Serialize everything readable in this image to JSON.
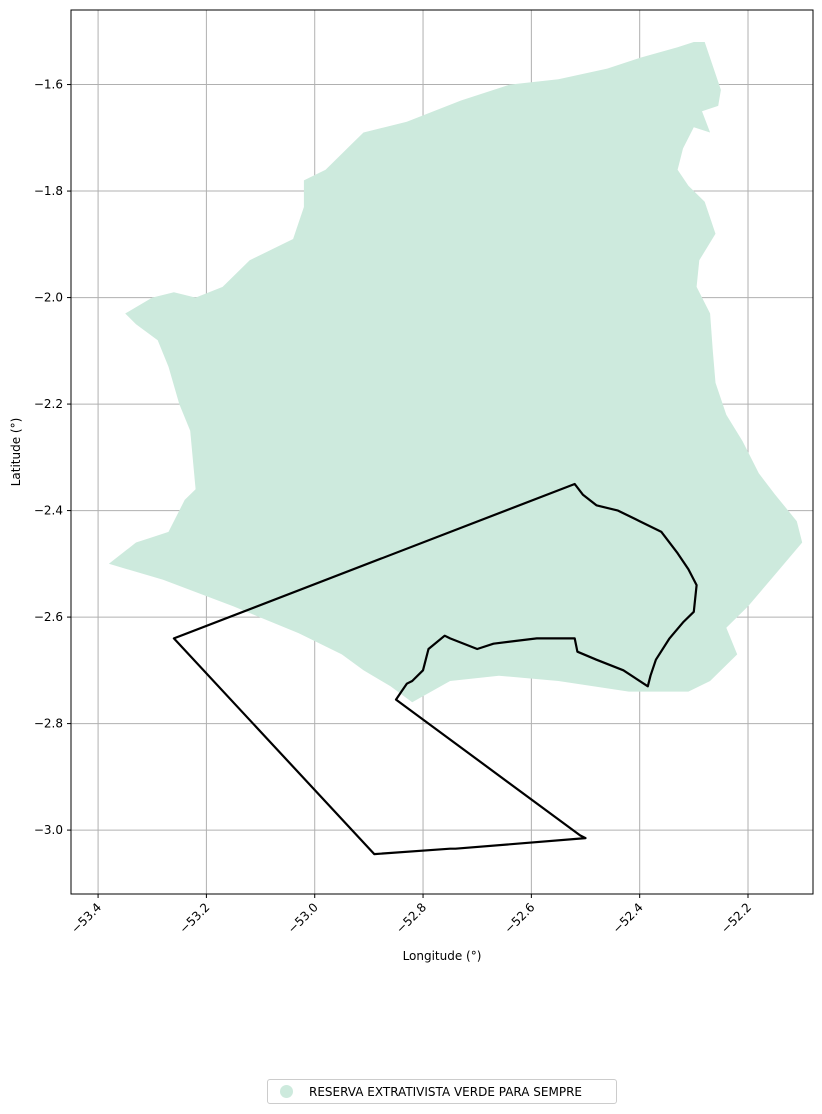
{
  "chart_data": {
    "type": "map",
    "xlabel": "Longitude (°)",
    "ylabel": "Latitude (°)",
    "xlim": [
      -53.45,
      -52.08
    ],
    "ylim": [
      -3.12,
      -1.46
    ],
    "xticks": [
      -53.4,
      -53.2,
      -53.0,
      -52.8,
      -52.6,
      -52.4,
      -52.2
    ],
    "xtick_labels": [
      "−53.4",
      "−53.2",
      "−53.0",
      "−52.8",
      "−52.6",
      "−52.4",
      "−52.2"
    ],
    "yticks": [
      -1.6,
      -1.8,
      -2.0,
      -2.2,
      -2.4,
      -2.6,
      -2.8,
      -3.0
    ],
    "ytick_labels": [
      "−1.6",
      "−1.8",
      "−2.0",
      "−2.2",
      "−2.4",
      "−2.6",
      "−2.8",
      "−3.0"
    ],
    "grid": true,
    "legend_position": "bottom-center",
    "layers": [
      {
        "name": "RESERVA EXTRATIVISTA VERDE PARA SEMPRE",
        "kind": "filled-polygon",
        "color": "#cdeadd",
        "coordinates": [
          [
            -53.38,
            -2.5
          ],
          [
            -53.33,
            -2.46
          ],
          [
            -53.3,
            -2.45
          ],
          [
            -53.27,
            -2.44
          ],
          [
            -53.24,
            -2.38
          ],
          [
            -53.22,
            -2.36
          ],
          [
            -53.23,
            -2.25
          ],
          [
            -53.25,
            -2.2
          ],
          [
            -53.27,
            -2.13
          ],
          [
            -53.29,
            -2.08
          ],
          [
            -53.33,
            -2.05
          ],
          [
            -53.35,
            -2.03
          ],
          [
            -53.3,
            -2.0
          ],
          [
            -53.26,
            -1.99
          ],
          [
            -53.22,
            -2.0
          ],
          [
            -53.17,
            -1.98
          ],
          [
            -53.12,
            -1.93
          ],
          [
            -53.08,
            -1.91
          ],
          [
            -53.04,
            -1.89
          ],
          [
            -53.02,
            -1.83
          ],
          [
            -53.02,
            -1.78
          ],
          [
            -52.98,
            -1.76
          ],
          [
            -52.93,
            -1.71
          ],
          [
            -52.91,
            -1.69
          ],
          [
            -52.83,
            -1.67
          ],
          [
            -52.73,
            -1.63
          ],
          [
            -52.64,
            -1.6
          ],
          [
            -52.55,
            -1.59
          ],
          [
            -52.46,
            -1.57
          ],
          [
            -52.4,
            -1.55
          ],
          [
            -52.33,
            -1.53
          ],
          [
            -52.3,
            -1.52
          ],
          [
            -52.28,
            -1.52
          ],
          [
            -52.25,
            -1.61
          ],
          [
            -52.255,
            -1.64
          ],
          [
            -52.285,
            -1.65
          ],
          [
            -52.27,
            -1.69
          ],
          [
            -52.3,
            -1.68
          ],
          [
            -52.32,
            -1.72
          ],
          [
            -52.33,
            -1.76
          ],
          [
            -52.31,
            -1.79
          ],
          [
            -52.28,
            -1.82
          ],
          [
            -52.26,
            -1.88
          ],
          [
            -52.29,
            -1.93
          ],
          [
            -52.295,
            -1.98
          ],
          [
            -52.27,
            -2.03
          ],
          [
            -52.265,
            -2.1
          ],
          [
            -52.26,
            -2.16
          ],
          [
            -52.24,
            -2.22
          ],
          [
            -52.21,
            -2.27
          ],
          [
            -52.18,
            -2.33
          ],
          [
            -52.15,
            -2.37
          ],
          [
            -52.11,
            -2.42
          ],
          [
            -52.1,
            -2.46
          ],
          [
            -52.15,
            -2.52
          ],
          [
            -52.2,
            -2.58
          ],
          [
            -52.24,
            -2.62
          ],
          [
            -52.22,
            -2.67
          ],
          [
            -52.27,
            -2.72
          ],
          [
            -52.31,
            -2.74
          ],
          [
            -52.42,
            -2.74
          ],
          [
            -52.55,
            -2.72
          ],
          [
            -52.66,
            -2.71
          ],
          [
            -52.75,
            -2.72
          ],
          [
            -52.82,
            -2.76
          ],
          [
            -52.86,
            -2.73
          ],
          [
            -52.91,
            -2.7
          ],
          [
            -52.95,
            -2.67
          ],
          [
            -53.03,
            -2.63
          ],
          [
            -53.15,
            -2.58
          ],
          [
            -53.28,
            -2.53
          ],
          [
            -53.38,
            -2.5
          ]
        ]
      },
      {
        "name": "",
        "kind": "outline",
        "color": "#000000",
        "coordinates": [
          [
            -53.26,
            -2.64
          ],
          [
            -52.52,
            -2.35
          ],
          [
            -52.505,
            -2.37
          ],
          [
            -52.48,
            -2.39
          ],
          [
            -52.44,
            -2.4
          ],
          [
            -52.4,
            -2.42
          ],
          [
            -52.36,
            -2.44
          ],
          [
            -52.33,
            -2.48
          ],
          [
            -52.31,
            -2.51
          ],
          [
            -52.295,
            -2.54
          ],
          [
            -52.3,
            -2.59
          ],
          [
            -52.32,
            -2.61
          ],
          [
            -52.345,
            -2.64
          ],
          [
            -52.37,
            -2.68
          ],
          [
            -52.38,
            -2.71
          ],
          [
            -52.385,
            -2.73
          ],
          [
            -52.43,
            -2.7
          ],
          [
            -52.48,
            -2.68
          ],
          [
            -52.515,
            -2.665
          ],
          [
            -52.52,
            -2.64
          ],
          [
            -52.55,
            -2.64
          ],
          [
            -52.59,
            -2.64
          ],
          [
            -52.63,
            -2.645
          ],
          [
            -52.67,
            -2.65
          ],
          [
            -52.7,
            -2.66
          ],
          [
            -52.75,
            -2.64
          ],
          [
            -52.76,
            -2.635
          ],
          [
            -52.79,
            -2.66
          ],
          [
            -52.8,
            -2.7
          ],
          [
            -52.82,
            -2.72
          ],
          [
            -52.83,
            -2.725
          ],
          [
            -52.84,
            -2.74
          ],
          [
            -52.85,
            -2.755
          ],
          [
            -52.51,
            -3.01
          ],
          [
            -52.5,
            -3.015
          ],
          [
            -52.74,
            -3.035
          ],
          [
            -52.75,
            -3.035
          ],
          [
            -52.89,
            -3.045
          ],
          [
            -53.26,
            -2.64
          ]
        ]
      }
    ]
  }
}
